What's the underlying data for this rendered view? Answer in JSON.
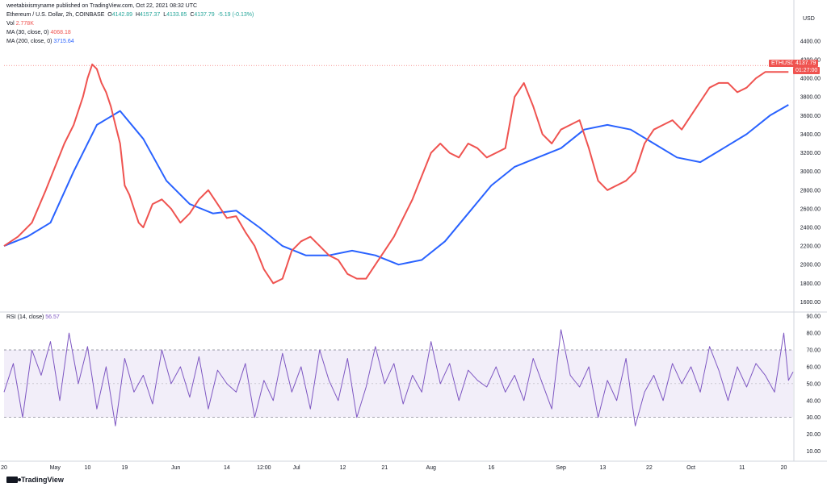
{
  "header": {
    "published": "weetabixismyname published on TradingView.com, Oct 22, 2021 08:32 UTC",
    "symbol_line": "Ethereum / U.S. Dollar, 2h, COINBASE",
    "o_label": "O",
    "o_value": "4142.89",
    "h_label": "H",
    "h_value": "4157.37",
    "l_label": "L",
    "l_value": "4133.85",
    "c_label": "C",
    "c_value": "4137.79",
    "change": "-5.19 (-0.13%)",
    "vol_label": "Vol",
    "vol_value": "2.778K",
    "ma30_label": "MA (30, close, 0)",
    "ma30_value": "4068.18",
    "ma200_label": "MA (200, close, 0)",
    "ma200_value": "3715.64",
    "rsi_label": "RSI (14, close)",
    "rsi_value": "56.57",
    "currency": "USD"
  },
  "price_tag": {
    "symbol": "ETHUSD",
    "price": "4137.79",
    "countdown": "01:27:00"
  },
  "footer": {
    "brand": "TradingView"
  },
  "colors": {
    "ma30": "#ef5350",
    "ma200": "#2962ff",
    "rsi": "#7e57c2",
    "up": "#26a69a",
    "down": "#ef5350"
  },
  "chart_data": [
    {
      "type": "line",
      "panel": "price",
      "y_ticks": [
        "4400.00",
        "4200.00",
        "4000.00",
        "3800.00",
        "3600.00",
        "3400.00",
        "3200.00",
        "3000.00",
        "2800.00",
        "2600.00",
        "2400.00",
        "2200.00",
        "2000.00",
        "1800.00",
        "1600.00"
      ],
      "ylim": [
        1500,
        4650
      ],
      "x_ticks": [
        "20",
        "May",
        "10",
        "19",
        "Jun",
        "14",
        "12:00",
        "Jul",
        "12",
        "21",
        "Aug",
        "16",
        "Sep",
        "13",
        "22",
        "Oct",
        "11",
        "20"
      ],
      "x_tick_pos": [
        0,
        11,
        18,
        26,
        37,
        48,
        56,
        63,
        73,
        82,
        92,
        105,
        120,
        129,
        139,
        148,
        159,
        168
      ],
      "series": [
        {
          "name": "MA (30, close, 0)",
          "x": [
            0,
            3,
            6,
            9,
            11,
            13,
            15,
            17,
            18,
            19,
            20,
            21,
            22,
            23,
            24,
            25,
            26,
            27,
            28,
            29,
            30,
            32,
            34,
            36,
            38,
            40,
            42,
            44,
            46,
            48,
            50,
            52,
            54,
            56,
            58,
            60,
            62,
            64,
            66,
            68,
            70,
            72,
            74,
            76,
            78,
            80,
            82,
            84,
            86,
            88,
            90,
            92,
            94,
            96,
            98,
            100,
            102,
            104,
            106,
            108,
            110,
            112,
            114,
            116,
            118,
            120,
            122,
            124,
            126,
            128,
            130,
            132,
            134,
            136,
            138,
            140,
            142,
            144,
            146,
            148,
            150,
            152,
            154,
            156,
            158,
            160,
            162,
            164,
            166,
            168,
            169
          ],
          "values": [
            2200,
            2300,
            2450,
            2800,
            3050,
            3300,
            3500,
            3800,
            4000,
            4150,
            4100,
            3950,
            3850,
            3700,
            3500,
            3300,
            2850,
            2750,
            2600,
            2450,
            2400,
            2650,
            2700,
            2600,
            2450,
            2550,
            2700,
            2800,
            2650,
            2500,
            2520,
            2350,
            2200,
            1950,
            1800,
            1850,
            2150,
            2250,
            2300,
            2200,
            2100,
            2050,
            1900,
            1850,
            1850,
            2000,
            2150,
            2300,
            2500,
            2700,
            2950,
            3200,
            3300,
            3200,
            3150,
            3300,
            3250,
            3150,
            3200,
            3250,
            3800,
            3950,
            3700,
            3400,
            3300,
            3450,
            3500,
            3550,
            3250,
            2900,
            2800,
            2850,
            2900,
            3000,
            3300,
            3450,
            3500,
            3550,
            3450,
            3600,
            3750,
            3900,
            3950,
            3950,
            3850,
            3900,
            4000,
            4068,
            4068,
            4068,
            4068
          ]
        },
        {
          "name": "MA (200, close, 0)",
          "x": [
            0,
            5,
            10,
            15,
            20,
            25,
            30,
            35,
            40,
            45,
            50,
            55,
            60,
            65,
            70,
            75,
            80,
            85,
            90,
            95,
            100,
            105,
            110,
            115,
            120,
            125,
            130,
            135,
            140,
            145,
            150,
            155,
            160,
            165,
            169
          ],
          "values": [
            2200,
            2300,
            2450,
            3000,
            3500,
            3650,
            3350,
            2900,
            2650,
            2550,
            2580,
            2400,
            2200,
            2100,
            2100,
            2150,
            2100,
            2000,
            2050,
            2250,
            2550,
            2850,
            3050,
            3150,
            3250,
            3450,
            3500,
            3450,
            3300,
            3150,
            3100,
            3250,
            3400,
            3600,
            3715
          ]
        }
      ]
    },
    {
      "type": "line",
      "panel": "rsi",
      "y_ticks": [
        "90.00",
        "80.00",
        "70.00",
        "60.00",
        "50.00",
        "40.00",
        "30.00",
        "20.00",
        "10.00"
      ],
      "ylim": [
        5,
        92
      ],
      "band": [
        30,
        70
      ],
      "series": [
        {
          "name": "RSI (14, close)",
          "x": [
            0,
            2,
            4,
            6,
            8,
            10,
            12,
            14,
            16,
            18,
            20,
            22,
            24,
            26,
            28,
            30,
            32,
            34,
            36,
            38,
            40,
            42,
            44,
            46,
            48,
            50,
            52,
            54,
            56,
            58,
            60,
            62,
            64,
            66,
            68,
            70,
            72,
            74,
            76,
            78,
            80,
            82,
            84,
            86,
            88,
            90,
            92,
            94,
            96,
            98,
            100,
            102,
            104,
            106,
            108,
            110,
            112,
            114,
            116,
            118,
            120,
            122,
            124,
            126,
            128,
            130,
            132,
            134,
            136,
            138,
            140,
            142,
            144,
            146,
            148,
            150,
            152,
            154,
            156,
            158,
            160,
            162,
            164,
            166,
            168,
            169,
            170
          ],
          "values": [
            45,
            62,
            30,
            70,
            55,
            75,
            40,
            80,
            50,
            72,
            35,
            60,
            25,
            65,
            45,
            55,
            38,
            70,
            50,
            60,
            42,
            66,
            35,
            58,
            50,
            45,
            62,
            30,
            52,
            40,
            68,
            45,
            60,
            35,
            70,
            52,
            40,
            65,
            30,
            48,
            72,
            50,
            62,
            38,
            55,
            45,
            75,
            50,
            62,
            40,
            58,
            52,
            48,
            60,
            45,
            55,
            40,
            65,
            50,
            35,
            82,
            55,
            48,
            60,
            30,
            52,
            40,
            65,
            25,
            45,
            55,
            40,
            62,
            50,
            60,
            45,
            72,
            58,
            40,
            60,
            48,
            62,
            55,
            45,
            80,
            52,
            57
          ]
        }
      ]
    }
  ]
}
